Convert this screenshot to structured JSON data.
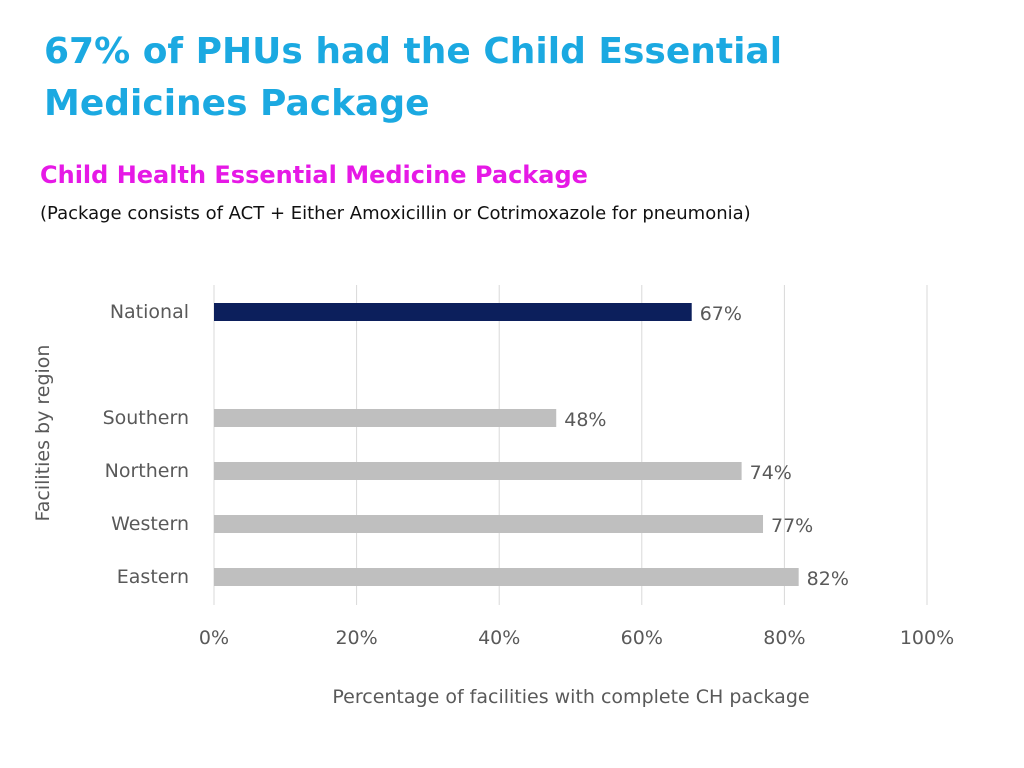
{
  "slide": {
    "title": "67% of PHUs had the Child Essential Medicines Package"
  },
  "chart_heading": "Child Health Essential Medicine Package",
  "chart_subheading": "(Package consists of ACT + Either Amoxicillin or Cotrimoxazole for pneumonia)",
  "colors": {
    "title": "#1ba9e1",
    "chart_heading": "#e619e6",
    "national_bar": "#0c1f5c",
    "region_bar": "#bfbfbf",
    "grid": "#d9d9d9",
    "text": "#595959"
  },
  "chart_data": {
    "type": "bar",
    "orientation": "horizontal",
    "categories": [
      "National",
      "Southern",
      "Northern",
      "Western",
      "Eastern"
    ],
    "values": [
      67,
      48,
      74,
      77,
      82
    ],
    "value_labels": [
      "67%",
      "48%",
      "74%",
      "77%",
      "82%"
    ],
    "bar_colors": [
      "#0c1f5c",
      "#bfbfbf",
      "#bfbfbf",
      "#bfbfbf",
      "#bfbfbf"
    ],
    "xlabel": "Percentage of facilities with complete CH package",
    "ylabel": "Facilities by region",
    "xlim": [
      0,
      100
    ],
    "xticks": [
      0,
      20,
      40,
      60,
      80,
      100
    ],
    "xtick_labels": [
      "0%",
      "20%",
      "40%",
      "60%",
      "80%",
      "100%"
    ],
    "grid": true
  }
}
